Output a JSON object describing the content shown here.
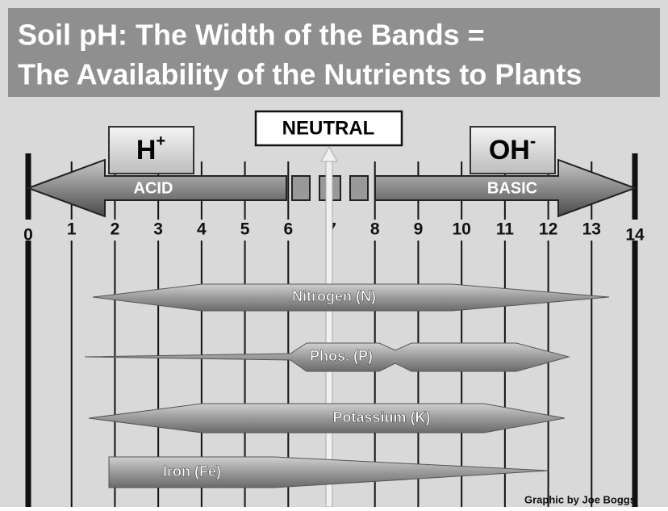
{
  "title": {
    "line1": "Soil pH:  The Width of the Bands =",
    "line2": "The Availability of the Nutrients to Plants"
  },
  "neutral": "NEUTRAL",
  "acid": {
    "ion": "H",
    "ion_sup": "+",
    "label": "ACID"
  },
  "basic": {
    "ion": "OH",
    "ion_sup": "-",
    "label": "BASIC"
  },
  "scale": [
    0,
    1,
    2,
    3,
    4,
    5,
    6,
    7,
    8,
    9,
    10,
    11,
    12,
    13,
    14
  ],
  "nutrients": [
    "Nitrogen (N)",
    "Phos. (P)",
    "Potassium (K)",
    "Iron (Fe)"
  ],
  "credit": "Graphic by Joe Boggs"
}
